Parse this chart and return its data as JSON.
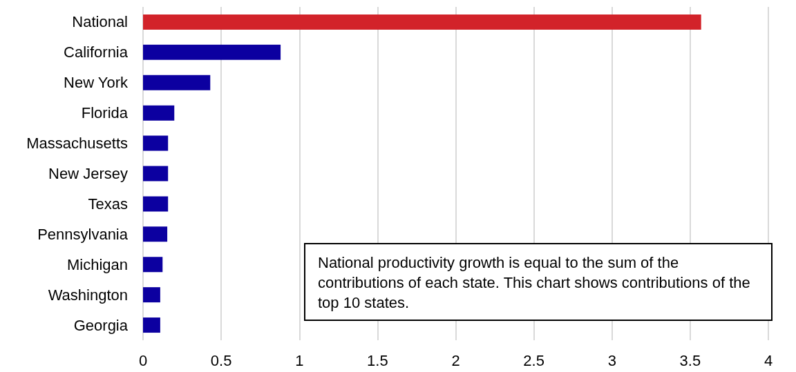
{
  "chart_data": {
    "type": "bar",
    "orientation": "horizontal",
    "categories": [
      "National",
      "California",
      "New York",
      "Florida",
      "Massachusetts",
      "New Jersey",
      "Texas",
      "Pennsylvania",
      "Michigan",
      "Washington",
      "Georgia"
    ],
    "values": [
      3.57,
      0.88,
      0.43,
      0.2,
      0.16,
      0.16,
      0.16,
      0.155,
      0.125,
      0.11,
      0.11
    ],
    "colors": [
      "#d2232a",
      "#0c00a0",
      "#0c00a0",
      "#0c00a0",
      "#0c00a0",
      "#0c00a0",
      "#0c00a0",
      "#0c00a0",
      "#0c00a0",
      "#0c00a0",
      "#0c00a0"
    ],
    "xlim": [
      0,
      4
    ],
    "xticks": [
      0,
      0.5,
      1,
      1.5,
      2,
      2.5,
      3,
      3.5,
      4
    ],
    "grid": "x",
    "annotations": [
      "National productivity growth is equal to the sum of the contributions of each state. This chart shows contributions of the top 10 states."
    ]
  }
}
